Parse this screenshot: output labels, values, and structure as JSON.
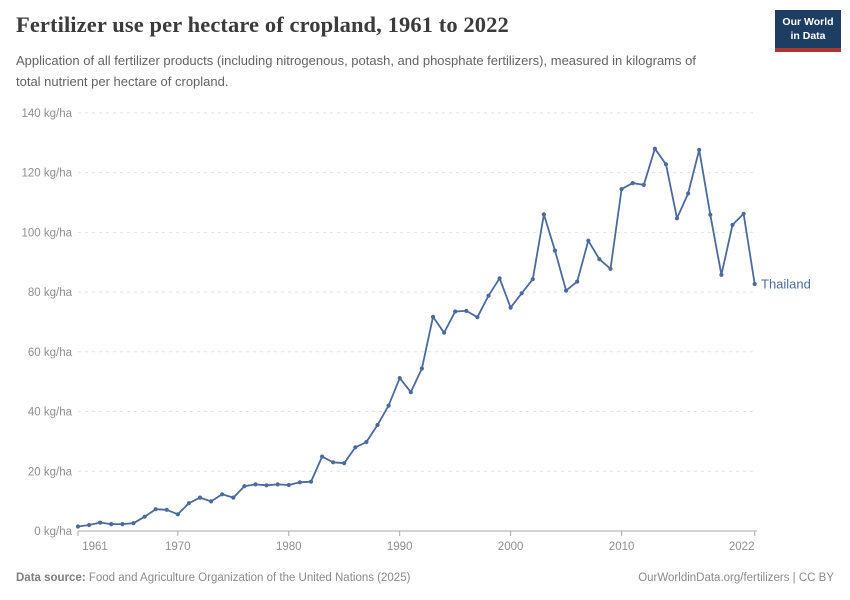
{
  "header": {
    "title": "Fertilizer use per hectare of cropland, 1961 to 2022",
    "subtitle": "Application of all fertilizer products (including nitrogenous, potash, and phosphate fertilizers), measured in kilograms of total nutrient per hectare of cropland."
  },
  "logo": {
    "line1": "Our World",
    "line2": "in Data"
  },
  "chart_data": {
    "type": "line",
    "title": "Fertilizer use per hectare of cropland, 1961 to 2022",
    "xlabel": "",
    "ylabel": "kg/ha",
    "xlim": [
      1961,
      2022
    ],
    "ylim": [
      0,
      140
    ],
    "grid": "dashed horizontal",
    "legend_position": "end-of-line label",
    "color": "#4c6a9c",
    "x_ticks": [
      1961,
      1970,
      1980,
      1990,
      2000,
      2010,
      2022
    ],
    "x_tick_labels": [
      "1961",
      "1970",
      "1980",
      "1990",
      "2000",
      "2010",
      "2022"
    ],
    "y_ticks": [
      0,
      20,
      40,
      60,
      80,
      100,
      120,
      140
    ],
    "y_tick_labels": [
      "0 kg/ha",
      "20 kg/ha",
      "40 kg/ha",
      "60 kg/ha",
      "80 kg/ha",
      "100 kg/ha",
      "120 kg/ha",
      "140 kg/ha"
    ],
    "x": [
      1961,
      1962,
      1963,
      1964,
      1965,
      1966,
      1967,
      1968,
      1969,
      1970,
      1971,
      1972,
      1973,
      1974,
      1975,
      1976,
      1977,
      1978,
      1979,
      1980,
      1981,
      1982,
      1983,
      1984,
      1985,
      1986,
      1987,
      1988,
      1989,
      1990,
      1991,
      1992,
      1993,
      1994,
      1995,
      1996,
      1997,
      1998,
      1999,
      2000,
      2001,
      2002,
      2003,
      2004,
      2005,
      2006,
      2007,
      2008,
      2009,
      2010,
      2011,
      2012,
      2013,
      2014,
      2015,
      2016,
      2017,
      2018,
      2019,
      2020,
      2021,
      2022
    ],
    "series": [
      {
        "name": "Thailand",
        "values": [
          1.5,
          2.0,
          2.8,
          2.3,
          2.3,
          2.6,
          4.8,
          7.3,
          7.1,
          5.6,
          9.3,
          11.2,
          9.9,
          12.3,
          11.2,
          15.0,
          15.6,
          15.3,
          15.6,
          15.4,
          16.3,
          16.5,
          24.9,
          23.0,
          22.7,
          28.0,
          29.8,
          35.5,
          42.0,
          51.2,
          46.5,
          54.4,
          71.7,
          66.4,
          73.5,
          73.7,
          71.6,
          78.8,
          84.6,
          74.8,
          79.6,
          84.3,
          106.0,
          93.9,
          80.5,
          83.5,
          97.2,
          91.0,
          87.8,
          114.5,
          116.5,
          115.9,
          128.0,
          122.8,
          104.7,
          113.0,
          127.6,
          105.9,
          85.8,
          102.5,
          106.2,
          82.7
        ]
      }
    ]
  },
  "footer": {
    "source_label": "Data source:",
    "source_text": " Food and Agriculture Organization of the United Nations (2025)",
    "right_text": "OurWorldinData.org/fertilizers | CC BY"
  }
}
